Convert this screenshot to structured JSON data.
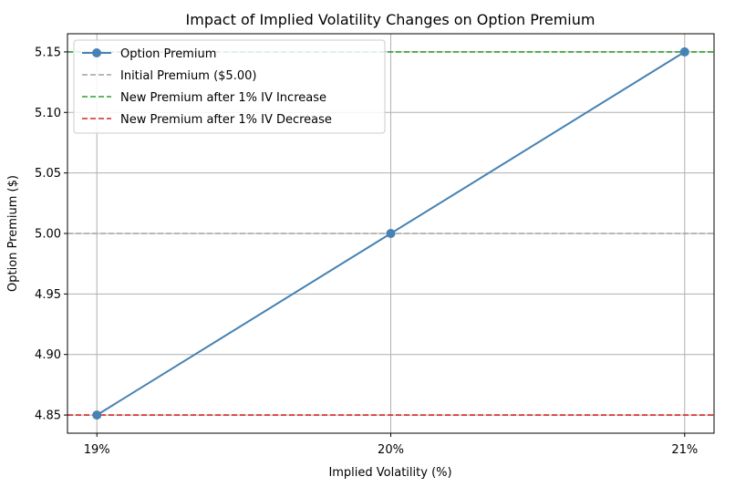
{
  "chart_data": {
    "type": "line",
    "title": "Impact of Implied Volatility Changes on Option Premium",
    "xlabel": "Implied Volatility (%)",
    "ylabel": "Option Premium ($)",
    "categories": [
      "19%",
      "20%",
      "21%"
    ],
    "x": [
      19,
      20,
      21
    ],
    "xlim": [
      18.9,
      21.1
    ],
    "ylim": [
      4.835,
      5.165
    ],
    "yticks": [
      "4.85",
      "4.90",
      "4.95",
      "5.00",
      "5.05",
      "5.10",
      "5.15"
    ],
    "grid": true,
    "legend_position": "top-left",
    "series": [
      {
        "name": "Option Premium",
        "values": [
          4.85,
          5.0,
          5.15
        ],
        "color": "#4682b4",
        "style": "solid",
        "marker": "circle"
      }
    ],
    "reference_lines": [
      {
        "name": "Initial Premium ($5.00)",
        "y": 5.0,
        "color": "#a0a0a0",
        "style": "dashed"
      },
      {
        "name": "New Premium after 1% IV Increase",
        "y": 5.15,
        "color": "#2ca02c",
        "style": "dashed"
      },
      {
        "name": "New Premium after 1% IV Decrease",
        "y": 4.85,
        "color": "#d62728",
        "style": "dashed"
      }
    ]
  }
}
